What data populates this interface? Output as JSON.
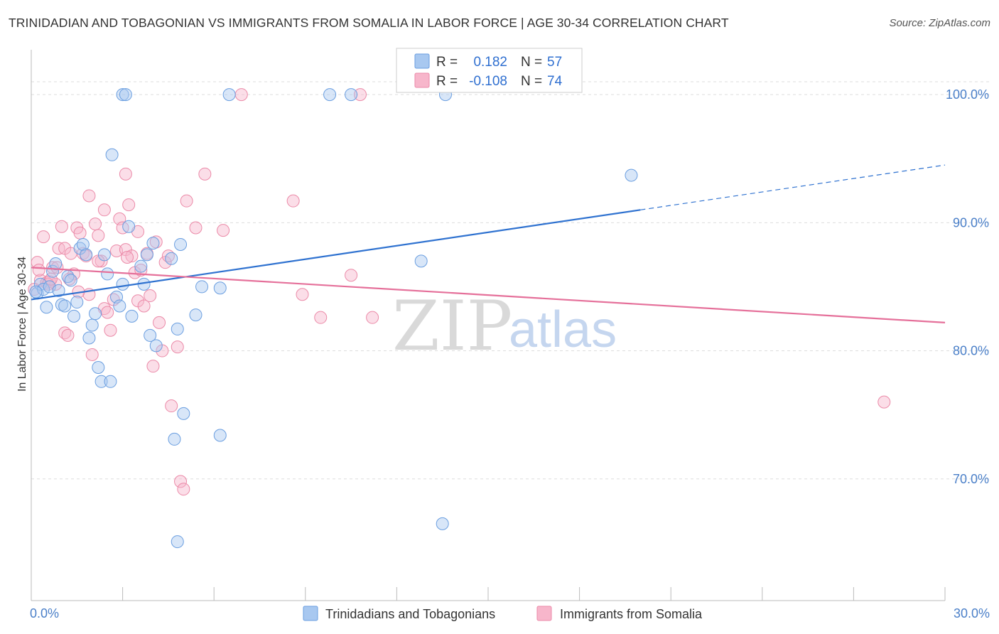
{
  "header": {
    "title": "TRINIDADIAN AND TOBAGONIAN VS IMMIGRANTS FROM SOMALIA IN LABOR FORCE | AGE 30-34 CORRELATION CHART",
    "source": "Source: ZipAtlas.com"
  },
  "watermark": {
    "zip": "ZIP",
    "atlas": "atlas"
  },
  "colors": {
    "blue_fill": "#a8c8f0",
    "blue_stroke": "#6a9ee0",
    "blue_line": "#2f72d0",
    "pink_fill": "#f7b6cb",
    "pink_stroke": "#eb8aa8",
    "pink_line": "#e5709a",
    "grid": "#dddddd",
    "tick_label": "#4a7fc8"
  },
  "legend_top": {
    "rows": [
      {
        "r_label": "R =",
        "r_value": "0.182",
        "n_label": "N =",
        "n_value": "57"
      },
      {
        "r_label": "R =",
        "r_value": "-0.108",
        "n_label": "N =",
        "n_value": "74"
      }
    ]
  },
  "chart_data": {
    "type": "scatter",
    "title": "TRINIDADIAN AND TOBAGONIAN VS IMMIGRANTS FROM SOMALIA IN LABOR FORCE | AGE 30-34 CORRELATION CHART",
    "xlabel": "",
    "ylabel": "In Labor Force | Age 30-34",
    "xlim": [
      0,
      30
    ],
    "ylim": [
      60.5,
      103.5
    ],
    "x_tick_labels": [
      "0.0%",
      "30.0%"
    ],
    "y_ticks": [
      70,
      80,
      90,
      100
    ],
    "y_tick_labels": [
      "70.0%",
      "80.0%",
      "90.0%",
      "100.0%"
    ],
    "grid": true,
    "legend_position": "bottom-center",
    "series": [
      {
        "name": "Trinidadians and Tobagonians",
        "color": "blue",
        "r": 0.182,
        "n": 57,
        "trend": {
          "x0": 0,
          "y0": 84.0,
          "x1": 20.0,
          "y1": 91.0,
          "dash_to_x": 30,
          "dash_to_y": 94.5
        },
        "points": [
          [
            0.2,
            84.5
          ],
          [
            0.3,
            85.2
          ],
          [
            0.4,
            84.8
          ],
          [
            0.5,
            83.4
          ],
          [
            0.6,
            85.0
          ],
          [
            0.7,
            86.2
          ],
          [
            0.8,
            86.8
          ],
          [
            0.9,
            84.7
          ],
          [
            1.0,
            83.6
          ],
          [
            1.1,
            83.5
          ],
          [
            1.2,
            85.8
          ],
          [
            1.3,
            85.5
          ],
          [
            1.4,
            82.7
          ],
          [
            1.5,
            83.8
          ],
          [
            1.6,
            88.0
          ],
          [
            1.7,
            88.3
          ],
          [
            1.8,
            87.5
          ],
          [
            1.9,
            81.0
          ],
          [
            2.0,
            82.0
          ],
          [
            2.1,
            82.9
          ],
          [
            2.2,
            78.7
          ],
          [
            2.3,
            77.6
          ],
          [
            2.4,
            87.5
          ],
          [
            2.5,
            86.0
          ],
          [
            2.6,
            77.6
          ],
          [
            2.65,
            95.3
          ],
          [
            2.8,
            84.2
          ],
          [
            2.9,
            83.5
          ],
          [
            3.0,
            85.2
          ],
          [
            3.0,
            100.0
          ],
          [
            3.1,
            100.0
          ],
          [
            3.2,
            89.7
          ],
          [
            3.3,
            82.7
          ],
          [
            3.6,
            86.6
          ],
          [
            3.7,
            85.2
          ],
          [
            3.8,
            87.5
          ],
          [
            3.9,
            81.2
          ],
          [
            4.0,
            88.4
          ],
          [
            4.1,
            80.4
          ],
          [
            4.6,
            87.2
          ],
          [
            4.7,
            73.1
          ],
          [
            4.8,
            81.7
          ],
          [
            4.9,
            88.3
          ],
          [
            5.0,
            75.1
          ],
          [
            5.4,
            82.8
          ],
          [
            5.6,
            85.0
          ],
          [
            6.2,
            84.9
          ],
          [
            6.2,
            73.4
          ],
          [
            6.5,
            100.0
          ],
          [
            9.8,
            100.0
          ],
          [
            10.5,
            100.0
          ],
          [
            12.8,
            87.0
          ],
          [
            13.5,
            66.5
          ],
          [
            13.6,
            100.0
          ],
          [
            4.8,
            65.1
          ],
          [
            19.7,
            93.7
          ],
          [
            0.15,
            84.6
          ]
        ]
      },
      {
        "name": "Immigrants from Somalia",
        "color": "pink",
        "r": -0.108,
        "n": 74,
        "trend": {
          "x0": 0,
          "y0": 86.5,
          "x1": 30,
          "y1": 82.2
        },
        "points": [
          [
            0.2,
            86.9
          ],
          [
            0.3,
            85.5
          ],
          [
            0.4,
            88.9
          ],
          [
            0.5,
            85.3
          ],
          [
            0.6,
            85.4
          ],
          [
            0.7,
            86.5
          ],
          [
            0.8,
            85.2
          ],
          [
            0.9,
            88.0
          ],
          [
            1.0,
            89.7
          ],
          [
            1.1,
            88.0
          ],
          [
            1.1,
            81.4
          ],
          [
            1.2,
            81.2
          ],
          [
            1.3,
            87.6
          ],
          [
            1.4,
            86.0
          ],
          [
            1.5,
            89.6
          ],
          [
            1.6,
            89.2
          ],
          [
            1.7,
            87.6
          ],
          [
            1.8,
            87.4
          ],
          [
            1.9,
            84.4
          ],
          [
            1.9,
            92.1
          ],
          [
            2.0,
            79.7
          ],
          [
            2.1,
            89.9
          ],
          [
            2.2,
            89.0
          ],
          [
            2.3,
            87.0
          ],
          [
            2.4,
            83.3
          ],
          [
            2.4,
            91.0
          ],
          [
            2.5,
            83.0
          ],
          [
            2.6,
            81.6
          ],
          [
            2.7,
            84.0
          ],
          [
            2.8,
            87.8
          ],
          [
            2.9,
            90.3
          ],
          [
            3.0,
            89.6
          ],
          [
            3.1,
            87.9
          ],
          [
            3.1,
            93.8
          ],
          [
            3.2,
            91.4
          ],
          [
            3.3,
            87.4
          ],
          [
            3.4,
            86.1
          ],
          [
            3.5,
            89.3
          ],
          [
            3.5,
            83.9
          ],
          [
            3.6,
            86.3
          ],
          [
            3.7,
            83.5
          ],
          [
            3.8,
            87.6
          ],
          [
            3.9,
            84.3
          ],
          [
            4.0,
            78.8
          ],
          [
            4.1,
            88.5
          ],
          [
            4.2,
            82.2
          ],
          [
            4.3,
            80.0
          ],
          [
            4.4,
            86.9
          ],
          [
            4.5,
            87.4
          ],
          [
            4.6,
            75.7
          ],
          [
            4.8,
            80.3
          ],
          [
            4.9,
            69.8
          ],
          [
            5.0,
            69.2
          ],
          [
            5.1,
            91.7
          ],
          [
            5.4,
            89.6
          ],
          [
            5.7,
            93.8
          ],
          [
            6.3,
            89.4
          ],
          [
            6.9,
            100.0
          ],
          [
            8.6,
            91.7
          ],
          [
            8.9,
            84.4
          ],
          [
            9.5,
            82.6
          ],
          [
            10.5,
            85.9
          ],
          [
            10.8,
            100.0
          ],
          [
            11.2,
            82.6
          ],
          [
            28.0,
            76.0
          ],
          [
            0.1,
            84.8
          ],
          [
            0.25,
            86.3
          ],
          [
            0.55,
            85.2
          ],
          [
            0.65,
            85.6
          ],
          [
            1.25,
            85.6
          ],
          [
            2.2,
            87.0
          ],
          [
            3.15,
            87.3
          ],
          [
            1.55,
            84.6
          ],
          [
            0.85,
            86.5
          ]
        ]
      }
    ]
  }
}
